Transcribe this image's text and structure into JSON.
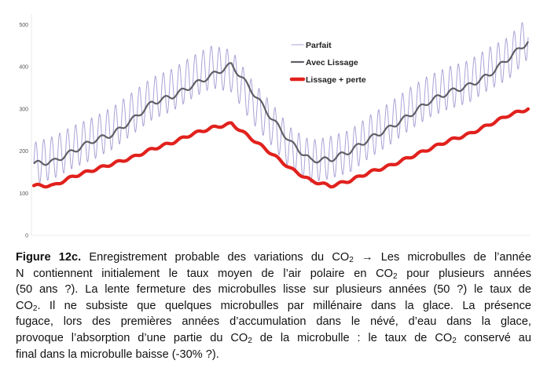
{
  "chart_data": {
    "type": "line",
    "title": "",
    "xlabel": "",
    "ylabel": "",
    "ylim": [
      0,
      520
    ],
    "yticks": [
      0,
      100,
      200,
      300,
      400,
      500
    ],
    "grid": false,
    "legend_position": "top-center",
    "colors": {
      "parfait": "#a9a3d6",
      "avec_lissage": "#5f5f66",
      "perte": "#e1211d"
    },
    "smooth_x": [
      0,
      4,
      8,
      12,
      16,
      20,
      24,
      28,
      32,
      36,
      40,
      44,
      48,
      52,
      56,
      60,
      64,
      68,
      72,
      76,
      80,
      84,
      88,
      92,
      96,
      100
    ],
    "parfait_amplitude": 50,
    "parfait_cycles": 62,
    "series": [
      {
        "name": "Parfait",
        "key": "parfait",
        "values": [
          170,
          185,
          210,
          230,
          255,
          290,
          325,
          345,
          375,
          400,
          390,
          320,
          265,
          205,
          175,
          185,
          200,
          235,
          265,
          300,
          330,
          350,
          365,
          395,
          420,
          470
        ]
      },
      {
        "name": "Avec Lissage",
        "key": "avec_lissage",
        "values": [
          170,
          175,
          200,
          225,
          240,
          275,
          315,
          330,
          355,
          380,
          405,
          345,
          280,
          220,
          178,
          180,
          200,
          230,
          255,
          285,
          318,
          340,
          355,
          380,
          420,
          460
        ]
      },
      {
        "name": "Lissage + perte",
        "key": "perte",
        "values": [
          118,
          118,
          140,
          155,
          170,
          185,
          205,
          220,
          240,
          255,
          265,
          230,
          195,
          158,
          130,
          117,
          130,
          150,
          165,
          185,
          205,
          225,
          240,
          262,
          285,
          300
        ]
      }
    ]
  },
  "caption": {
    "figure_label": "Figure 12c.",
    "lines": [
      [
        " Enregistrement probable des variations du CO",
        "2",
        " → Les microbulles de l’année"
      ],
      [
        "N contiennent initialement le taux moyen de l’air polaire en CO",
        "2",
        " pour plusieurs années"
      ],
      [
        "(50 ans ?). La  lente fermeture des microbulles lisse sur plusieurs années (50 ?) le taux de"
      ],
      [
        "CO",
        "2",
        ". Il ne subsiste que quelques microbulles par millénaire  dans la glace. La présence"
      ],
      [
        "fugace, lors des premières années d’accumulation dans le névé, d’eau dans la glace,"
      ],
      [
        "provoque l’absorption d’une partie du CO",
        "2",
        "  de la microbulle : le taux de CO",
        "2",
        " conservé au"
      ],
      [
        "final dans la microbulle baisse (-30% ?)."
      ]
    ]
  }
}
